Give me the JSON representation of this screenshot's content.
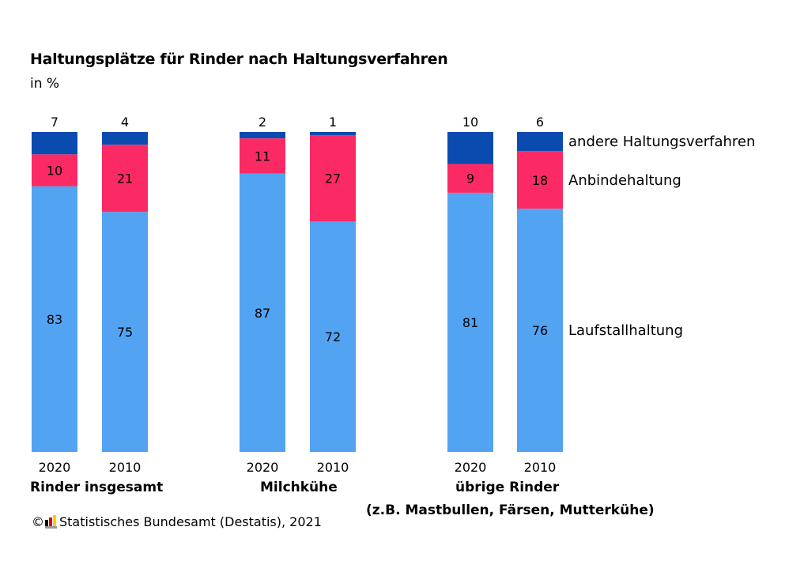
{
  "title": "Haltungsplätze für Rinder nach Haltungsverfahren",
  "subtitle": "in %",
  "chart_data": {
    "type": "bar",
    "stacked": true,
    "ylim": [
      0,
      100
    ],
    "grid": false,
    "legend_placement": "right",
    "groups": [
      "Rinder insgesamt",
      "Milchkühe",
      "übrige Rinder\n(z.B. Mastbullen, Färsen, Mutterkühe)"
    ],
    "categories": [
      "2020",
      "2010",
      "2020",
      "2010",
      "2020",
      "2010"
    ],
    "series": [
      {
        "name": "Laufstallhaltung",
        "color": "#52a3f2",
        "values": [
          83,
          75,
          87,
          72,
          81,
          76
        ]
      },
      {
        "name": "Anbindehaltung",
        "color": "#fc2a64",
        "values": [
          10,
          21,
          11,
          27,
          9,
          18
        ]
      },
      {
        "name": "andere Haltungsverfahren",
        "color": "#0a4bb0",
        "values": [
          7,
          4,
          2,
          1,
          10,
          6
        ]
      }
    ]
  },
  "group_labels": [
    "Rinder insgesamt",
    "Milchkühe",
    "übrige Rinder",
    "(z.B. Mastbullen, Färsen, Mutterkühe)"
  ],
  "source": "Statistisches Bundesamt (Destatis), 2021",
  "copyright_symbol": "©",
  "logo_colors": [
    "#000000",
    "#dd0000",
    "#ffcc00"
  ]
}
